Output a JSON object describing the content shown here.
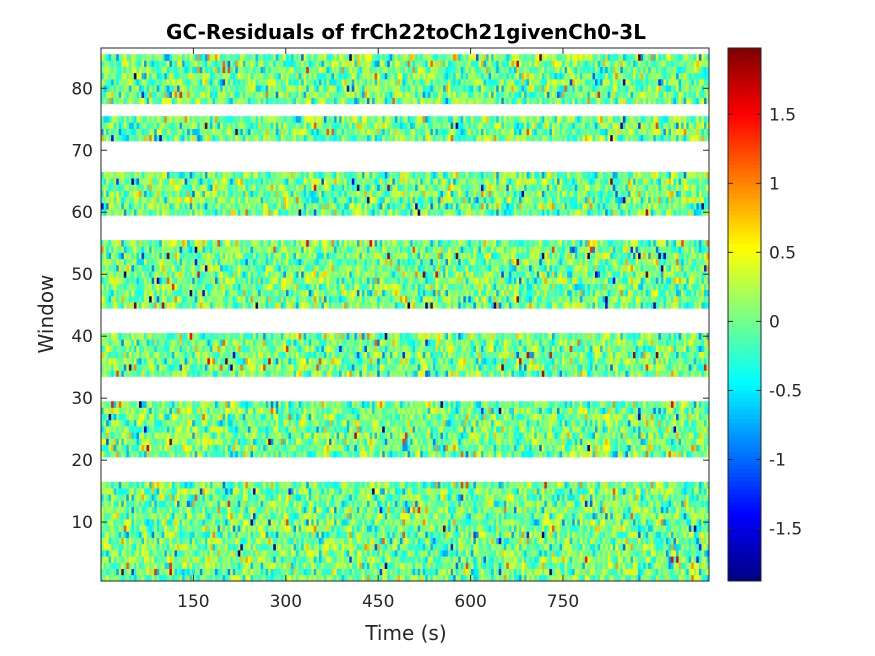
{
  "chart_data": {
    "type": "heatmap",
    "title": "GC-Residuals of frCh22toCh21givenCh0-3L",
    "xlabel": "Time (s)",
    "ylabel": "Window",
    "xlim": [
      0,
      987
    ],
    "ylim": [
      0.5,
      86.5
    ],
    "x_ticks": [
      150,
      300,
      450,
      600,
      750
    ],
    "x_tick_labels": [
      "150",
      "300",
      "450",
      "600",
      "750"
    ],
    "y_ticks": [
      10,
      20,
      30,
      40,
      50,
      60,
      70,
      80
    ],
    "y_tick_labels": [
      "10",
      "20",
      "30",
      "40",
      "50",
      "60",
      "70",
      "80"
    ],
    "colorbar": {
      "colormap": "jet",
      "clim": [
        -1.88,
        1.98
      ],
      "ticks": [
        -1.5,
        -1,
        -0.5,
        0,
        0.5,
        1,
        1.5
      ],
      "tick_labels": [
        "-1.5",
        "-1",
        "-0.5",
        "0",
        "0.5",
        "1",
        "1.5"
      ]
    },
    "window_row_blocks": [
      [
        1,
        16
      ],
      [
        21,
        29
      ],
      [
        34,
        40
      ],
      [
        45,
        55
      ],
      [
        60,
        66
      ],
      [
        72,
        75
      ],
      [
        78,
        85
      ]
    ],
    "missing_windows": [
      [
        17,
        20
      ],
      [
        30,
        33
      ],
      [
        41,
        44
      ],
      [
        56,
        59
      ],
      [
        67,
        71
      ],
      [
        76,
        77
      ],
      [
        86,
        86
      ]
    ],
    "residual_distribution": {
      "mean": 0,
      "std": 0.35,
      "min": -1.88,
      "max": 1.98
    }
  }
}
